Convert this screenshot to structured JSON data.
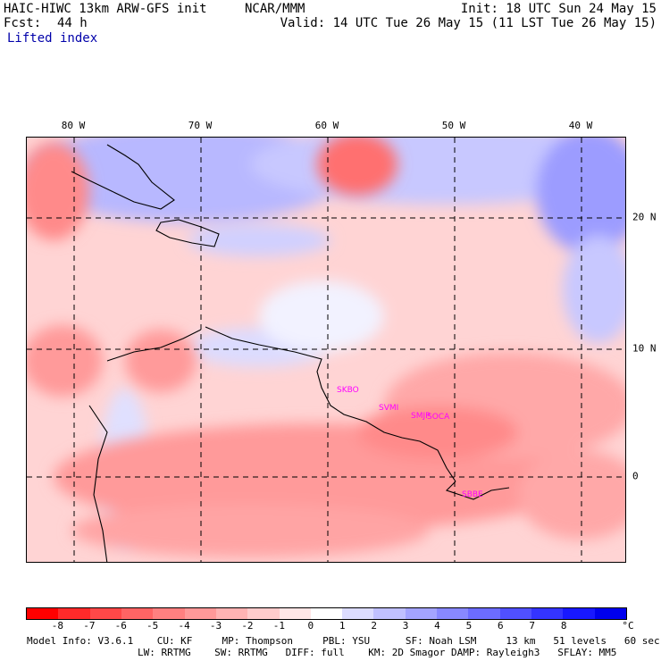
{
  "header": {
    "model_title": "HAIC-HIWC 13km ARW-GFS init",
    "org": "NCAR/MMM",
    "init": "Init: 18 UTC Sun 24 May 15",
    "fcst_label": "Fcst:",
    "fcst_value": "44 h",
    "valid": "Valid: 14 UTC Tue 26 May 15 (11 LST Tue 26 May 15)",
    "field": "Lifted index"
  },
  "axes": {
    "lon_labels": [
      "80 W",
      "70 W",
      "60 W",
      "50 W",
      "40 W"
    ],
    "lat_labels": [
      "20 N",
      "10 N",
      "0"
    ]
  },
  "stations": [
    "SKBO",
    "SVMI",
    "SMJP",
    "SOCA",
    "SBBE"
  ],
  "colorbar": {
    "colors": [
      "#ff0000",
      "#ff2a2a",
      "#ff4848",
      "#ff6464",
      "#ff8080",
      "#ff9999",
      "#ffb3b3",
      "#ffcccc",
      "#ffe6e6",
      "#ffffff",
      "#dcdcff",
      "#c0c0ff",
      "#a4a4ff",
      "#8888ff",
      "#6c6cff",
      "#5050ff",
      "#3434ff",
      "#1818ff",
      "#0000ee"
    ],
    "ticks": [
      "-8",
      "-7",
      "-6",
      "-5",
      "-4",
      "-3",
      "-2",
      "-1",
      "0",
      "1",
      "2",
      "3",
      "4",
      "5",
      "6",
      "7",
      "8"
    ],
    "unit": "°C"
  },
  "footer": {
    "line1": "Model Info: V3.6.1    CU: KF     MP: Thompson     PBL: YSU      SF: Noah LSM     13 km   51 levels   60 sec",
    "line2": "LW: RRTMG    SW: RRTMG   DIFF: full    KM: 2D Smagor DAMP: Rayleigh3   SFLAY: MM5"
  }
}
